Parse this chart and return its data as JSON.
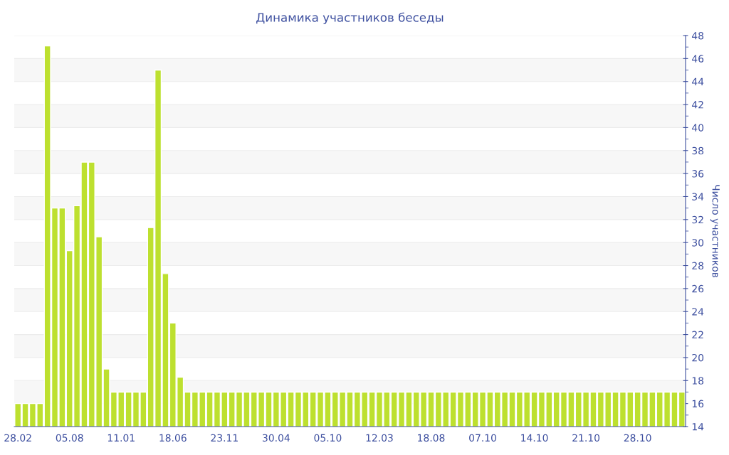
{
  "chart_data": {
    "type": "bar",
    "title": "Динамика участников беседы",
    "ylabel": "Число участников",
    "categories": [
      "28.02",
      null,
      null,
      null,
      null,
      null,
      null,
      "05.08",
      null,
      null,
      null,
      null,
      null,
      null,
      "11.01",
      null,
      null,
      null,
      null,
      null,
      null,
      "18.06",
      null,
      null,
      null,
      null,
      null,
      null,
      "23.11",
      null,
      null,
      null,
      null,
      null,
      null,
      "30.04",
      null,
      null,
      null,
      null,
      null,
      null,
      "05.10",
      null,
      null,
      null,
      null,
      null,
      null,
      "12.03",
      null,
      null,
      null,
      null,
      null,
      null,
      "18.08",
      null,
      null,
      null,
      null,
      null,
      null,
      "07.10",
      null,
      null,
      null,
      null,
      null,
      null,
      "14.10",
      null,
      null,
      null,
      null,
      null,
      null,
      "21.10",
      null,
      null,
      null,
      null,
      null,
      null,
      "28.10",
      null,
      null,
      null,
      null,
      null,
      null
    ],
    "values": [
      16,
      16,
      16,
      16,
      47.1,
      33,
      33,
      29.3,
      33.2,
      37,
      37,
      30.5,
      19,
      17,
      17,
      17,
      17,
      17,
      31.3,
      45,
      27.3,
      23,
      18.3,
      17,
      17,
      17,
      17,
      17,
      17,
      17,
      17,
      17,
      17,
      17,
      17,
      17,
      17,
      17,
      17,
      17,
      17,
      17,
      17,
      17,
      17,
      17,
      17,
      17,
      17,
      17,
      17,
      17,
      17,
      17,
      17,
      17,
      17,
      17,
      17,
      17,
      17,
      17,
      17,
      17,
      17,
      17,
      17,
      17,
      17,
      17,
      17,
      17,
      17,
      17,
      17,
      17,
      17,
      17,
      17,
      17,
      17,
      17,
      17,
      17,
      17,
      17,
      17,
      17,
      17,
      17,
      17
    ],
    "color": "#bde02f",
    "ylim": [
      14,
      48
    ],
    "yticks": [
      14,
      16,
      18,
      20,
      22,
      24,
      26,
      28,
      30,
      32,
      34,
      36,
      38,
      40,
      42,
      44,
      46,
      48
    ],
    "grid": "y"
  }
}
